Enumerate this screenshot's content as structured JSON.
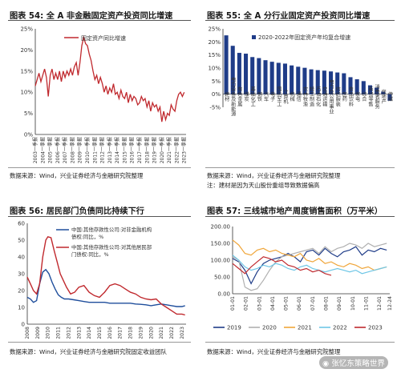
{
  "panels": [
    {
      "title": "图表 54:  全 A 非金融固定资产投资同比增速",
      "source": "数据来源：Wind，兴业证券经济与金融研究院整理",
      "note": ""
    },
    {
      "title": "图表 55:  全 A 分行业固定资产投资同比增速",
      "source": "数据来源：Wind，兴业证券经济与金融研究院整理",
      "note": "注：建材是因为天山股份重组导致数据偏高"
    },
    {
      "title": "图表 56:  居民部门负债同比持续下行",
      "source": "数据来源：Wind，兴业证券经济与金融研究院固定收益团队",
      "note": ""
    },
    {
      "title": "图表 57:  三线城市地产周度销售面积（万平米）",
      "source": "数据来源：Wind，兴业证券经济与金融研究院整理",
      "note": ""
    }
  ],
  "watermark": "张忆东策略世界",
  "colors": {
    "red": "#c0292e",
    "blue": "#1f4e9c",
    "navy": "#1f3c88"
  },
  "chart_data": [
    {
      "type": "line",
      "title": "图表 54:  全 A 非金融固定资产投资同比增速",
      "legend": [
        "固定资产同比增速"
      ],
      "legend_position": "top-center",
      "ylim": [
        0,
        25
      ],
      "yticks": [
        "0%",
        "5%",
        "10%",
        "15%",
        "20%",
        "25%"
      ],
      "xticks": [
        "2003一季报",
        "2004一季报",
        "2005一季报",
        "2006一季报",
        "2007一季报",
        "2008一季报",
        "2009一季报",
        "2010一季报",
        "2011一季报",
        "2012一季报",
        "2013一季报",
        "2014一季报",
        "2015一季报",
        "2016一季报",
        "2017一季报",
        "2018一季报",
        "2019一季报",
        "2020一季报",
        "2021一季报",
        "2022一季报",
        "2023一季报"
      ],
      "series": [
        {
          "name": "固定资产同比增速",
          "color": "#c0292e",
          "x": [
            2003.0,
            2003.25,
            2003.5,
            2003.75,
            2004.0,
            2004.25,
            2004.5,
            2004.75,
            2005.0,
            2005.25,
            2005.5,
            2005.75,
            2006.0,
            2006.25,
            2006.5,
            2006.75,
            2007.0,
            2007.25,
            2007.5,
            2007.75,
            2008.0,
            2008.25,
            2008.5,
            2008.75,
            2009.0,
            2009.25,
            2009.5,
            2009.75,
            2010.0,
            2010.25,
            2010.5,
            2010.75,
            2011.0,
            2011.25,
            2011.5,
            2011.75,
            2012.0,
            2012.25,
            2012.5,
            2012.75,
            2013.0,
            2013.25,
            2013.5,
            2013.75,
            2014.0,
            2014.25,
            2014.5,
            2014.75,
            2015.0,
            2015.25,
            2015.5,
            2015.75,
            2016.0,
            2016.25,
            2016.5,
            2016.75,
            2017.0,
            2017.25,
            2017.5,
            2017.75,
            2018.0,
            2018.25,
            2018.5,
            2018.75,
            2019.0,
            2019.25,
            2019.5,
            2019.75,
            2020.0,
            2020.25,
            2020.5,
            2020.75,
            2021.0,
            2021.25,
            2021.5,
            2021.75,
            2022.0,
            2022.25,
            2022.5,
            2022.75,
            2023.0
          ],
          "y": [
            11.5,
            13,
            14.5,
            12.5,
            14,
            15.5,
            13.5,
            9,
            14,
            15.5,
            13,
            14.5,
            13,
            15,
            12.5,
            15,
            13.5,
            15,
            14,
            15.5,
            14,
            16,
            17,
            14,
            17,
            21,
            23,
            21.5,
            21,
            19,
            17.5,
            15,
            13,
            14,
            12,
            13.5,
            12,
            10,
            11.5,
            9.5,
            11,
            10,
            12,
            9.5,
            10,
            8.5,
            10.5,
            9,
            8.5,
            10,
            7.5,
            9.5,
            8,
            9,
            8.5,
            7,
            7.5,
            9,
            8,
            8.5,
            6.5,
            8,
            5.5,
            7.5,
            6.5,
            7,
            5.5,
            6.5,
            3,
            5.5,
            3.5,
            5,
            4.5,
            7,
            6,
            5.5,
            8,
            9.5,
            10,
            9,
            10
          ]
        }
      ]
    },
    {
      "type": "bar",
      "title": "图表 55:  全 A 分行业固定资产投资同比增速",
      "legend": [
        "2020-2022年固定资产年均复合增速"
      ],
      "legend_position": "top-right",
      "ylim": [
        -5,
        25
      ],
      "yticks": [
        "-5%",
        "0%",
        "5%",
        "10%",
        "15%",
        "20%",
        "25%"
      ],
      "categories": [
        "建材",
        "电力设备及新能源",
        "有色金属",
        "煤炭",
        "基础化工",
        "钢铁",
        "汽车",
        "电子",
        "国防军工",
        "计算机",
        "机械",
        "通信",
        "农林牧渔",
        "轻工制造",
        "石油石化",
        "交通运输",
        "电力及公用事业",
        "纺织服装",
        "医药",
        "食品饮料",
        "家电",
        "综合",
        "商贸零售",
        "消费者服务",
        "房地产",
        "传媒"
      ],
      "series": [
        {
          "name": "2020-2022年固定资产年均复合增速",
          "color": "#1f3c88",
          "values": [
            22.5,
            18.5,
            15.8,
            15.5,
            14.2,
            13.8,
            13,
            12.4,
            12,
            11.7,
            11,
            10.5,
            10.1,
            9.5,
            9.2,
            9,
            8.7,
            8.3,
            8,
            6.5,
            5.7,
            5,
            3.4,
            2.5,
            1,
            -2.5
          ]
        }
      ]
    },
    {
      "type": "line",
      "title": "图表 56:  居民部门负债同比持续下行",
      "legend": [
        "中国:其他存款性公司:对非金融机构债权:同比，%",
        "中国:其他存款性公司:对其他居民部门债权:同比，%"
      ],
      "legend_position": "top-right",
      "ylim": [
        0,
        60
      ],
      "yticks": [
        "0",
        "10",
        "20",
        "30",
        "40",
        "50",
        "60"
      ],
      "xticks": [
        "2008",
        "2009",
        "2010",
        "2011",
        "2012",
        "2013",
        "2014",
        "2015",
        "2016",
        "2017",
        "2018",
        "2019",
        "2020",
        "2021",
        "2022",
        "2023"
      ],
      "series": [
        {
          "name": "中国:其他存款性公司:对非金融机构债权:同比，%",
          "color": "#1f4e9c",
          "x": [
            2008.0,
            2008.3,
            2008.6,
            2008.9,
            2009.2,
            2009.5,
            2009.8,
            2010.1,
            2010.4,
            2010.7,
            2011.0,
            2011.3,
            2011.6,
            2012.0,
            2012.5,
            2013.0,
            2013.5,
            2014.0,
            2014.5,
            2015.0,
            2015.5,
            2016.0,
            2016.5,
            2017.0,
            2017.5,
            2018.0,
            2018.5,
            2019.0,
            2019.5,
            2020.0,
            2020.5,
            2021.0,
            2021.5,
            2022.0,
            2022.5,
            2023.0,
            2023.3
          ],
          "y": [
            16,
            15,
            13,
            14,
            24,
            31,
            32.5,
            30,
            25,
            21,
            17.5,
            16,
            15,
            15,
            14.5,
            14,
            13.5,
            13,
            13,
            13,
            13,
            12.5,
            12.5,
            12.5,
            12.5,
            12.5,
            12,
            11.8,
            11.5,
            11,
            11.5,
            12,
            11.5,
            11,
            10.5,
            10.5,
            11
          ]
        },
        {
          "name": "中国:其他存款性公司:对其他居民部门债权:同比，%",
          "color": "#c0292e",
          "x": [
            2008.0,
            2008.3,
            2008.6,
            2008.9,
            2009.2,
            2009.5,
            2009.8,
            2010.0,
            2010.3,
            2010.6,
            2010.9,
            2011.2,
            2011.5,
            2011.8,
            2012.2,
            2012.6,
            2013.0,
            2013.5,
            2014.0,
            2014.5,
            2015.0,
            2015.5,
            2016.0,
            2016.5,
            2017.0,
            2017.5,
            2018.0,
            2018.5,
            2019.0,
            2019.5,
            2020.0,
            2020.5,
            2021.0,
            2021.5,
            2022.0,
            2022.5,
            2023.0,
            2023.3
          ],
          "y": [
            28,
            24,
            20,
            18,
            24,
            40,
            50,
            52,
            51.5,
            44,
            37,
            30,
            26,
            22,
            18,
            19,
            22,
            23,
            19,
            17,
            16,
            19,
            23,
            24,
            23,
            21,
            19,
            18,
            16,
            15,
            14.5,
            15,
            12,
            10,
            8,
            6,
            6,
            5.5
          ]
        }
      ]
    },
    {
      "type": "line",
      "title": "图表 57:  三线城市地产周度销售面积（万平米）",
      "legend": [
        "2019",
        "2020",
        "2021",
        "2022",
        "2023"
      ],
      "legend_position": "bottom",
      "ylim": [
        0,
        200
      ],
      "yticks": [
        "0.00",
        "50.00",
        "100.00",
        "150.00",
        "200.00"
      ],
      "xticks": [
        "01-01",
        "02-01",
        "03-01",
        "04-01",
        "05-01",
        "06-01",
        "07-01",
        "08-01",
        "09-01",
        "10-01",
        "11-01",
        "12-01",
        "12-24"
      ],
      "series": [
        {
          "name": "2019",
          "color": "#1f3c88",
          "x": [
            1,
            3,
            5,
            7,
            9,
            11,
            13,
            15,
            17,
            19,
            21,
            23,
            25,
            27,
            29,
            31,
            33,
            35,
            37,
            39,
            41,
            43,
            45,
            47,
            49,
            51
          ],
          "y": [
            105,
            95,
            70,
            30,
            65,
            90,
            100,
            105,
            110,
            120,
            110,
            95,
            125,
            130,
            115,
            135,
            120,
            110,
            125,
            130,
            140,
            115,
            130,
            125,
            135,
            130
          ]
        },
        {
          "name": "2020",
          "color": "#b0b0b0",
          "x": [
            1,
            3,
            5,
            7,
            9,
            11,
            13,
            15,
            17,
            19,
            21,
            23,
            25,
            27,
            29,
            31,
            33,
            35,
            37,
            39,
            41,
            43,
            45,
            47,
            49,
            51
          ],
          "y": [
            110,
            100,
            20,
            10,
            15,
            40,
            70,
            95,
            110,
            115,
            120,
            125,
            130,
            135,
            120,
            140,
            125,
            135,
            140,
            150,
            145,
            135,
            150,
            140,
            145,
            150
          ]
        },
        {
          "name": "2021",
          "color": "#f0a63a",
          "x": [
            1,
            3,
            5,
            7,
            9,
            11,
            13,
            15,
            17,
            19,
            21,
            23,
            25,
            27,
            29,
            31,
            33,
            35,
            37,
            39,
            41,
            43,
            45,
            47,
            49,
            51
          ],
          "y": [
            160,
            145,
            120,
            115,
            130,
            135,
            125,
            130,
            120,
            115,
            110,
            120,
            100,
            95,
            105,
            90,
            95,
            85,
            80,
            90,
            85,
            75,
            80,
            70,
            75,
            80
          ]
        },
        {
          "name": "2022",
          "color": "#6ec6e6",
          "x": [
            1,
            3,
            5,
            7,
            9,
            11,
            13,
            15,
            17,
            19,
            21,
            23,
            25,
            27,
            29,
            31,
            33,
            35,
            37,
            39,
            41,
            43,
            45,
            47,
            49,
            51
          ],
          "y": [
            115,
            100,
            80,
            70,
            75,
            85,
            80,
            90,
            85,
            75,
            70,
            80,
            85,
            75,
            70,
            65,
            70,
            75,
            70,
            65,
            70,
            60,
            65,
            70,
            75,
            80
          ]
        },
        {
          "name": "2023",
          "color": "#c0292e",
          "x": [
            1,
            3,
            5,
            7,
            9,
            11,
            13,
            15,
            17,
            19,
            21,
            23,
            25,
            27,
            29,
            31,
            33
          ],
          "y": [
            90,
            75,
            60,
            80,
            95,
            110,
            105,
            95,
            100,
            85,
            80,
            70,
            75,
            65,
            70,
            60,
            55
          ]
        }
      ]
    }
  ]
}
